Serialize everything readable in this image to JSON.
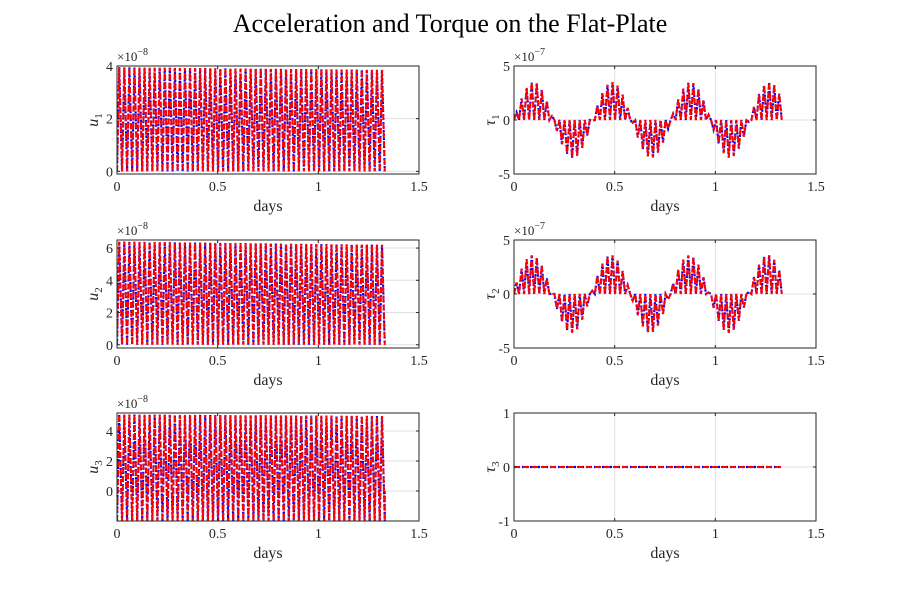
{
  "figure": {
    "title": "Acceleration and Torque on the Flat-Plate"
  },
  "colors": {
    "series_a": "#0000ff",
    "series_b": "#ff0000",
    "grid": "#e0e0e0",
    "axes": "#262626"
  },
  "chart_data": [
    {
      "type": "line",
      "xlabel": "days",
      "ylabel": "u_1",
      "ylabel_base": "u",
      "ylabel_sub": "1",
      "exponent": "-8",
      "xlim": [
        0,
        1.5
      ],
      "ylim": [
        -0.1,
        4
      ],
      "xticks": [
        "0",
        "0.5",
        "1",
        "1.5"
      ],
      "yticks": [
        "0",
        "2",
        "4"
      ],
      "grid": true,
      "series": [
        {
          "color": "#0000ff",
          "style": "dotted",
          "signal": {
            "t_end": 1.33,
            "n_pulses": 53,
            "min": 0,
            "max": 3.95,
            "max_end": 3.85,
            "envelope_period": 0.39
          }
        },
        {
          "color": "#ff0000",
          "style": "dashed",
          "signal": {
            "t_end": 1.33,
            "n_pulses": 53,
            "min": 0,
            "max": 3.95,
            "max_end": 3.85,
            "envelope_period": 0.39
          }
        }
      ]
    },
    {
      "type": "line",
      "xlabel": "days",
      "ylabel": "τ_1",
      "ylabel_base": "τ",
      "ylabel_sub": "1",
      "exponent": "-7",
      "xlim": [
        0,
        1.5
      ],
      "ylim": [
        -5,
        5
      ],
      "xticks": [
        "0",
        "0.5",
        "1",
        "1.5"
      ],
      "yticks": [
        "-5",
        "0",
        "5"
      ],
      "grid": true,
      "series": [
        {
          "color": "#0000ff",
          "style": "dotted",
          "signal": {
            "t_end": 1.33,
            "n_pulses": 53,
            "amplitude_peak": 3.5,
            "envelope_period": 0.39,
            "phase": 0.0
          }
        },
        {
          "color": "#ff0000",
          "style": "dashed",
          "signal": {
            "t_end": 1.33,
            "n_pulses": 53,
            "amplitude_peak": 3.5,
            "envelope_period": 0.39,
            "phase": 0.0
          }
        }
      ]
    },
    {
      "type": "line",
      "xlabel": "days",
      "ylabel": "u_2",
      "ylabel_base": "u",
      "ylabel_sub": "2",
      "exponent": "-8",
      "xlim": [
        0,
        1.5
      ],
      "ylim": [
        -0.2,
        6.5
      ],
      "xticks": [
        "0",
        "0.5",
        "1",
        "1.5"
      ],
      "yticks": [
        "0",
        "2",
        "4",
        "6"
      ],
      "grid": true,
      "series": [
        {
          "color": "#0000ff",
          "style": "dotted",
          "signal": {
            "t_end": 1.33,
            "n_pulses": 53,
            "min": 0,
            "max": 6.4,
            "max_end": 6.2,
            "envelope_period": 0.39
          }
        },
        {
          "color": "#ff0000",
          "style": "dashed",
          "signal": {
            "t_end": 1.33,
            "n_pulses": 53,
            "min": 0,
            "max": 6.4,
            "max_end": 6.2,
            "envelope_period": 0.39
          }
        }
      ]
    },
    {
      "type": "line",
      "xlabel": "days",
      "ylabel": "τ_2",
      "ylabel_base": "τ",
      "ylabel_sub": "2",
      "exponent": "-7",
      "xlim": [
        0,
        1.5
      ],
      "ylim": [
        -5,
        5
      ],
      "xticks": [
        "0",
        "0.5",
        "1",
        "1.5"
      ],
      "yticks": [
        "-5",
        "0",
        "5"
      ],
      "grid": true,
      "series": [
        {
          "color": "#0000ff",
          "style": "dotted",
          "signal": {
            "t_end": 1.33,
            "n_pulses": 53,
            "amplitude_peak": 3.6,
            "envelope_period": 0.39,
            "phase": 0.1
          }
        },
        {
          "color": "#ff0000",
          "style": "dashed",
          "signal": {
            "t_end": 1.33,
            "n_pulses": 53,
            "amplitude_peak": 3.6,
            "envelope_period": 0.39,
            "phase": 0.1
          }
        }
      ]
    },
    {
      "type": "line",
      "xlabel": "days",
      "ylabel": "u_3",
      "ylabel_base": "u",
      "ylabel_sub": "3",
      "exponent": "-8",
      "xlim": [
        0,
        1.5
      ],
      "ylim": [
        -2,
        5.2
      ],
      "xticks": [
        "0",
        "0.5",
        "1",
        "1.5"
      ],
      "yticks": [
        "0",
        "2",
        "4"
      ],
      "grid": true,
      "series": [
        {
          "color": "#0000ff",
          "style": "dotted",
          "signal": {
            "t_end": 1.33,
            "n_pulses": 53,
            "min": -2,
            "max": 5.1,
            "max_end": 5.0,
            "envelope_period": 0.39
          }
        },
        {
          "color": "#ff0000",
          "style": "dashed",
          "signal": {
            "t_end": 1.33,
            "n_pulses": 53,
            "min": -2,
            "max": 5.1,
            "max_end": 5.0,
            "envelope_period": 0.39
          }
        }
      ]
    },
    {
      "type": "line",
      "xlabel": "days",
      "ylabel": "τ_3",
      "ylabel_base": "τ",
      "ylabel_sub": "3",
      "exponent": "",
      "xlim": [
        0,
        1.5
      ],
      "ylim": [
        -1,
        1
      ],
      "xticks": [
        "0",
        "0.5",
        "1",
        "1.5"
      ],
      "yticks": [
        "-1",
        "0",
        "1"
      ],
      "grid": true,
      "series": [
        {
          "color": "#0000ff",
          "style": "dotted",
          "signal": {
            "t_end": 1.33,
            "constant": 0
          }
        },
        {
          "color": "#ff0000",
          "style": "dashed",
          "signal": {
            "t_end": 1.33,
            "constant": 0
          }
        }
      ]
    }
  ]
}
